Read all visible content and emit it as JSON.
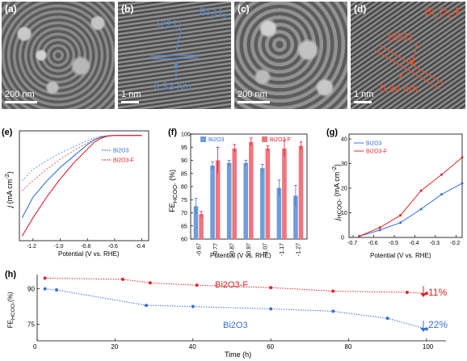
{
  "panels": {
    "a": {
      "label": "(a)",
      "scale": "200 nm"
    },
    "b": {
      "label": "(b)",
      "material": "Bi2O3",
      "plane": "(221)",
      "spacing": "0.33 nm",
      "scale": "1 nm",
      "accent": "#5b86c7"
    },
    "c": {
      "label": "(c)",
      "scale": "200 nm"
    },
    "d": {
      "label": "(d)",
      "material": "Bi2O3-F",
      "plane": "(221)",
      "spacing": "0.34 nm",
      "scale": "1 nm",
      "accent": "#e8502f"
    },
    "e": {
      "label": "(e)"
    },
    "f": {
      "label": "(f)"
    },
    "g": {
      "label": "(g)"
    },
    "h": {
      "label": "(h)"
    }
  },
  "colors": {
    "bi2o3": "#3a6fd6",
    "bi2o3f": "#e0242b",
    "bar_blue": "#6f9ddc",
    "bar_red": "#f2757b"
  },
  "chart_data": [
    {
      "id": "e",
      "type": "line",
      "xlabel": "Potential (V vs. RHE)",
      "ylabel": "j (mA cm-2)",
      "xlim": [
        -1.3,
        -0.35
      ],
      "xticks": [
        "-1.2",
        "-1.0",
        "-0.8",
        "-0.6",
        "-0.4"
      ],
      "legend": [
        "Bi2O3",
        "Bi2O3-F"
      ],
      "series": [
        {
          "name": "Bi2O3",
          "x": [
            -1.28,
            -1.2,
            -1.1,
            -1.0,
            -0.9,
            -0.8,
            -0.75,
            -0.7,
            -0.65,
            -0.6,
            -0.5,
            -0.4
          ],
          "y": [
            -36,
            -27,
            -20,
            -14,
            -9,
            -4,
            -2,
            -0.7,
            -0.2,
            0,
            0,
            0
          ]
        },
        {
          "name": "Bi2O3-F",
          "x": [
            -1.28,
            -1.2,
            -1.1,
            -1.0,
            -0.9,
            -0.8,
            -0.75,
            -0.7,
            -0.65,
            -0.6,
            -0.5,
            -0.4
          ],
          "y": [
            -44,
            -36,
            -27,
            -19,
            -12,
            -6,
            -3,
            -1.2,
            -0.3,
            0,
            0,
            0
          ]
        }
      ]
    },
    {
      "id": "f",
      "type": "bar",
      "xlabel": "Potential (V vs. RHE)",
      "ylabel": "FEHCOO- (%)",
      "ylim": [
        60,
        100
      ],
      "yticks": [
        "60",
        "65",
        "70",
        "75",
        "80",
        "85",
        "90",
        "95",
        "100"
      ],
      "categories": [
        "-0.67",
        "-0.77",
        "-0.87",
        "-0.97",
        "-1.07",
        "-1.17",
        "-1.27"
      ],
      "legend": [
        "Bi2O3",
        "Bi2O3-F"
      ],
      "series": [
        {
          "name": "Bi2O3",
          "values": [
            72.5,
            88,
            89,
            89,
            87,
            79.5,
            76.5
          ],
          "errors": [
            3,
            1.5,
            1,
            1,
            1.5,
            3,
            4
          ]
        },
        {
          "name": "Bi2O3-F",
          "values": [
            69.5,
            90,
            94.5,
            97,
            94.5,
            94.5,
            95.5
          ],
          "errors": [
            1,
            5,
            1.5,
            1.5,
            1,
            3,
            1.5
          ]
        }
      ]
    },
    {
      "id": "g",
      "type": "line",
      "xlabel": "Potential (V vs. RHE)",
      "ylabel": "jHCOO- (mA cm-2)",
      "xlim": [
        -0.72,
        -0.17
      ],
      "ylim": [
        0,
        42
      ],
      "xticks": [
        "-0.7",
        "-0.6",
        "-0.5",
        "-0.4",
        "-0.3",
        "-0.2"
      ],
      "yticks": [
        "0",
        "10",
        "20",
        "30",
        "40"
      ],
      "legend": [
        "Bi2O3",
        "Bi2O3-F"
      ],
      "series": [
        {
          "name": "Bi2O3",
          "x": [
            -0.67,
            -0.57,
            -0.47,
            -0.37,
            -0.27,
            -0.17
          ],
          "y": [
            0.5,
            3,
            6,
            11.5,
            17.5,
            22
          ]
        },
        {
          "name": "Bi2O3-F",
          "x": [
            -0.67,
            -0.57,
            -0.47,
            -0.37,
            -0.27,
            -0.17
          ],
          "y": [
            0.5,
            4,
            9,
            19,
            25.5,
            32.5
          ]
        }
      ]
    },
    {
      "id": "h",
      "type": "line",
      "xlabel": "Time (h)",
      "ylabel": "FEHCOO- (%)",
      "xlim": [
        0,
        105
      ],
      "ylim": [
        68,
        96
      ],
      "xticks": [
        "0",
        "20",
        "40",
        "60",
        "80",
        "100"
      ],
      "yticks": [
        "75",
        "90"
      ],
      "series": [
        {
          "name": "Bi2O3-F",
          "x": [
            2,
            22,
            29,
            41,
            60,
            76,
            95,
            100
          ],
          "y": [
            94.5,
            94,
            92.5,
            91.5,
            90.5,
            89,
            88.5,
            88
          ]
        },
        {
          "name": "Bi2O3",
          "x": [
            2,
            5,
            28,
            40,
            60,
            76,
            90,
            100
          ],
          "y": [
            90,
            89.5,
            83,
            82.5,
            81.5,
            80.5,
            77.5,
            73
          ]
        }
      ],
      "annotations": [
        {
          "text": "Bi2O3-F",
          "color": "#e0242b"
        },
        {
          "text": "Bi2O3",
          "color": "#3a6fd6"
        },
        {
          "text": "11%",
          "color": "#e0242b"
        },
        {
          "text": "22%",
          "color": "#3a6fd6"
        }
      ]
    }
  ]
}
